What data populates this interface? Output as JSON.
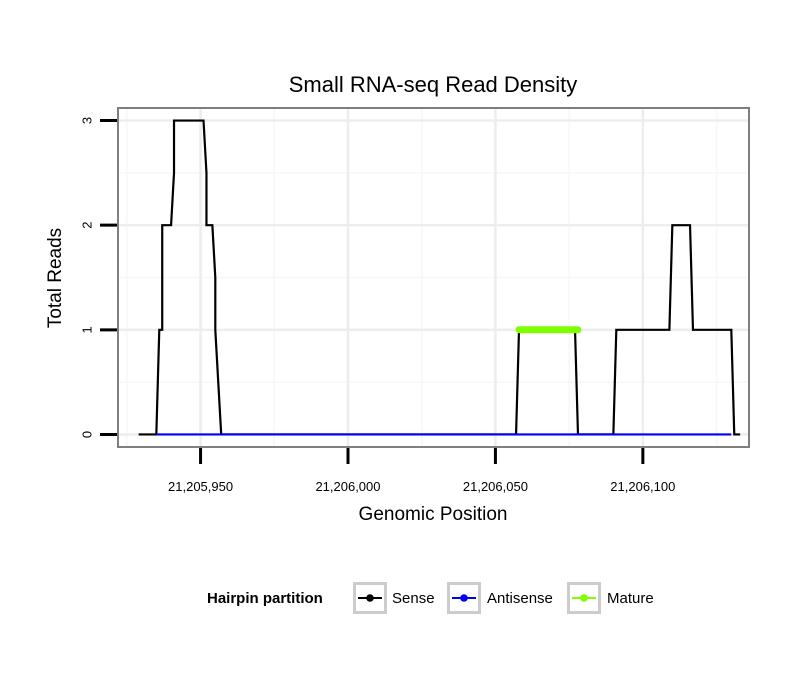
{
  "chart_data": {
    "type": "line",
    "title": "Small RNA-seq Read Density",
    "xlabel": "Genomic Position",
    "ylabel": "Total Reads",
    "xlim": [
      21205922,
      21206136
    ],
    "ylim": [
      -0.12,
      3.12
    ],
    "x_ticks": [
      21205950,
      21206000,
      21206050,
      21206100
    ],
    "x_tick_labels": [
      "21,205,950",
      "21,206,000",
      "21,206,050",
      "21,206,100"
    ],
    "y_ticks": [
      0,
      1,
      2,
      3
    ],
    "y_tick_labels": [
      "0",
      "1",
      "2",
      "3"
    ],
    "grid": true,
    "legend": {
      "title": "Hairpin partition",
      "position": "bottom",
      "entries": [
        {
          "label": "Sense",
          "color": "#000000"
        },
        {
          "label": "Antisense",
          "color": "#0000ff"
        },
        {
          "label": "Mature",
          "color": "#7fff00"
        }
      ]
    },
    "series": [
      {
        "name": "Sense",
        "color": "#000000",
        "x": [
          21205929,
          21205935,
          21205936,
          21205937,
          21205937,
          21205938,
          21205940,
          21205941,
          21205941,
          21205951,
          21205952,
          21205952,
          21205954,
          21205955,
          21205955,
          21205957,
          21206057,
          21206058,
          21206077,
          21206078,
          21206090,
          21206091,
          21206109,
          21206110,
          21206116,
          21206117,
          21206130,
          21206131,
          21206133
        ],
        "y": [
          0,
          0,
          1,
          1,
          2,
          2,
          2,
          2.5,
          3,
          3,
          2.5,
          2,
          2,
          1.5,
          1,
          0,
          0,
          1,
          1,
          0,
          0,
          1,
          1,
          2,
          2,
          1,
          1,
          0,
          0
        ]
      },
      {
        "name": "Antisense",
        "color": "#0000ff",
        "x": [
          21205935,
          21205956,
          21206056,
          21206079,
          21206091,
          21206130
        ],
        "y": [
          0,
          0,
          0,
          0,
          0,
          0
        ]
      },
      {
        "name": "Mature",
        "color": "#7fff00",
        "x": [
          21206058,
          21206078
        ],
        "y": [
          1,
          1
        ]
      }
    ]
  }
}
